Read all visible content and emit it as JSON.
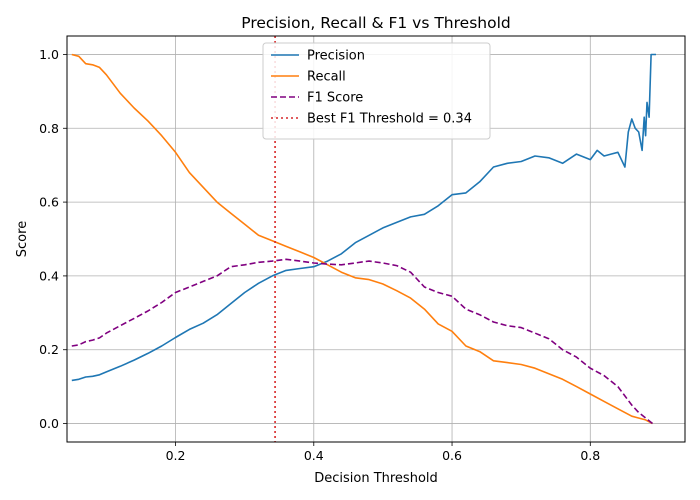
{
  "chart_data": {
    "type": "line",
    "title": "Precision, Recall & F1 vs Threshold",
    "xlabel": "Decision Threshold",
    "ylabel": "Score",
    "xlim": [
      0.043,
      0.937
    ],
    "ylim": [
      -0.05,
      1.05
    ],
    "xticks": [
      0.2,
      0.4,
      0.6,
      0.8
    ],
    "yticks": [
      0.0,
      0.2,
      0.4,
      0.6,
      0.8,
      1.0
    ],
    "grid": true,
    "legend_position": "top-center",
    "series": [
      {
        "name": "Precision",
        "color": "#1f77b4",
        "style": "solid",
        "points": [
          [
            0.05,
            0.117
          ],
          [
            0.06,
            0.12
          ],
          [
            0.07,
            0.126
          ],
          [
            0.08,
            0.128
          ],
          [
            0.09,
            0.132
          ],
          [
            0.1,
            0.14
          ],
          [
            0.12,
            0.155
          ],
          [
            0.14,
            0.172
          ],
          [
            0.16,
            0.19
          ],
          [
            0.18,
            0.21
          ],
          [
            0.2,
            0.233
          ],
          [
            0.22,
            0.255
          ],
          [
            0.24,
            0.272
          ],
          [
            0.26,
            0.295
          ],
          [
            0.28,
            0.325
          ],
          [
            0.3,
            0.355
          ],
          [
            0.32,
            0.38
          ],
          [
            0.34,
            0.4
          ],
          [
            0.36,
            0.415
          ],
          [
            0.38,
            0.42
          ],
          [
            0.4,
            0.425
          ],
          [
            0.42,
            0.44
          ],
          [
            0.44,
            0.46
          ],
          [
            0.46,
            0.49
          ],
          [
            0.48,
            0.51
          ],
          [
            0.5,
            0.53
          ],
          [
            0.52,
            0.545
          ],
          [
            0.54,
            0.56
          ],
          [
            0.56,
            0.567
          ],
          [
            0.58,
            0.59
          ],
          [
            0.6,
            0.62
          ],
          [
            0.62,
            0.625
          ],
          [
            0.64,
            0.655
          ],
          [
            0.66,
            0.695
          ],
          [
            0.68,
            0.705
          ],
          [
            0.7,
            0.71
          ],
          [
            0.72,
            0.725
          ],
          [
            0.74,
            0.72
          ],
          [
            0.76,
            0.705
          ],
          [
            0.78,
            0.73
          ],
          [
            0.8,
            0.715
          ],
          [
            0.81,
            0.74
          ],
          [
            0.82,
            0.725
          ],
          [
            0.83,
            0.73
          ],
          [
            0.84,
            0.735
          ],
          [
            0.85,
            0.695
          ],
          [
            0.855,
            0.79
          ],
          [
            0.86,
            0.825
          ],
          [
            0.865,
            0.8
          ],
          [
            0.87,
            0.79
          ],
          [
            0.875,
            0.74
          ],
          [
            0.878,
            0.83
          ],
          [
            0.88,
            0.78
          ],
          [
            0.882,
            0.87
          ],
          [
            0.885,
            0.83
          ],
          [
            0.888,
            1.0
          ],
          [
            0.895,
            1.0
          ]
        ]
      },
      {
        "name": "Recall",
        "color": "#ff7f0e",
        "style": "solid",
        "points": [
          [
            0.05,
            1.0
          ],
          [
            0.06,
            0.995
          ],
          [
            0.07,
            0.975
          ],
          [
            0.08,
            0.972
          ],
          [
            0.09,
            0.965
          ],
          [
            0.1,
            0.945
          ],
          [
            0.12,
            0.895
          ],
          [
            0.14,
            0.855
          ],
          [
            0.16,
            0.82
          ],
          [
            0.18,
            0.78
          ],
          [
            0.2,
            0.735
          ],
          [
            0.22,
            0.68
          ],
          [
            0.24,
            0.64
          ],
          [
            0.26,
            0.6
          ],
          [
            0.28,
            0.57
          ],
          [
            0.3,
            0.54
          ],
          [
            0.32,
            0.51
          ],
          [
            0.34,
            0.495
          ],
          [
            0.36,
            0.48
          ],
          [
            0.38,
            0.465
          ],
          [
            0.4,
            0.45
          ],
          [
            0.42,
            0.43
          ],
          [
            0.44,
            0.41
          ],
          [
            0.46,
            0.395
          ],
          [
            0.48,
            0.39
          ],
          [
            0.5,
            0.378
          ],
          [
            0.52,
            0.36
          ],
          [
            0.54,
            0.34
          ],
          [
            0.56,
            0.31
          ],
          [
            0.58,
            0.27
          ],
          [
            0.6,
            0.25
          ],
          [
            0.62,
            0.21
          ],
          [
            0.64,
            0.195
          ],
          [
            0.66,
            0.17
          ],
          [
            0.68,
            0.165
          ],
          [
            0.7,
            0.16
          ],
          [
            0.72,
            0.15
          ],
          [
            0.74,
            0.135
          ],
          [
            0.76,
            0.12
          ],
          [
            0.78,
            0.1
          ],
          [
            0.8,
            0.08
          ],
          [
            0.82,
            0.06
          ],
          [
            0.84,
            0.04
          ],
          [
            0.86,
            0.02
          ],
          [
            0.88,
            0.01
          ],
          [
            0.89,
            0.0
          ]
        ]
      },
      {
        "name": "F1 Score",
        "color": "#800080",
        "style": "dashed",
        "points": [
          [
            0.05,
            0.21
          ],
          [
            0.06,
            0.213
          ],
          [
            0.07,
            0.222
          ],
          [
            0.08,
            0.226
          ],
          [
            0.09,
            0.232
          ],
          [
            0.1,
            0.245
          ],
          [
            0.12,
            0.265
          ],
          [
            0.14,
            0.285
          ],
          [
            0.16,
            0.305
          ],
          [
            0.18,
            0.328
          ],
          [
            0.2,
            0.355
          ],
          [
            0.22,
            0.37
          ],
          [
            0.24,
            0.385
          ],
          [
            0.26,
            0.4
          ],
          [
            0.28,
            0.425
          ],
          [
            0.3,
            0.43
          ],
          [
            0.32,
            0.437
          ],
          [
            0.34,
            0.44
          ],
          [
            0.36,
            0.445
          ],
          [
            0.38,
            0.44
          ],
          [
            0.4,
            0.435
          ],
          [
            0.42,
            0.432
          ],
          [
            0.44,
            0.43
          ],
          [
            0.46,
            0.435
          ],
          [
            0.47,
            0.438
          ],
          [
            0.48,
            0.44
          ],
          [
            0.5,
            0.435
          ],
          [
            0.52,
            0.428
          ],
          [
            0.54,
            0.41
          ],
          [
            0.56,
            0.37
          ],
          [
            0.58,
            0.355
          ],
          [
            0.6,
            0.345
          ],
          [
            0.62,
            0.31
          ],
          [
            0.64,
            0.295
          ],
          [
            0.66,
            0.275
          ],
          [
            0.68,
            0.265
          ],
          [
            0.7,
            0.26
          ],
          [
            0.72,
            0.245
          ],
          [
            0.74,
            0.23
          ],
          [
            0.76,
            0.2
          ],
          [
            0.78,
            0.18
          ],
          [
            0.8,
            0.15
          ],
          [
            0.82,
            0.13
          ],
          [
            0.84,
            0.1
          ],
          [
            0.86,
            0.05
          ],
          [
            0.87,
            0.03
          ],
          [
            0.88,
            0.015
          ],
          [
            0.89,
            0.0
          ]
        ]
      }
    ],
    "reference_lines": [
      {
        "name": "Best F1 Threshold = 0.34",
        "x": 0.344,
        "color": "#d62728",
        "style": "dotted"
      }
    ]
  }
}
